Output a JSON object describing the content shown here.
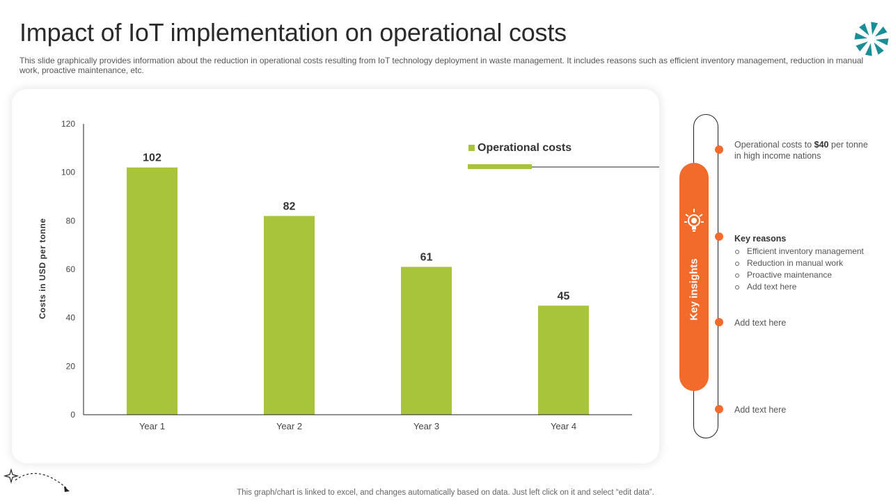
{
  "page": {
    "title": "Impact of IoT implementation on operational costs",
    "subtitle": "This slide graphically provides information about the reduction in operational costs resulting from IoT technology deployment in waste management. It includes reasons such as efficient inventory management, reduction in manual work, proactive maintenance, etc.",
    "footer": "This graph/chart is linked to excel, and changes automatically based on data. Just left click on it and select “edit data”."
  },
  "colors": {
    "bar": "#a8c43a",
    "accent": "#f26b2b",
    "logo": "#1a8e96"
  },
  "chart_data": {
    "type": "bar",
    "categories": [
      "Year 1",
      "Year 2",
      "Year 3",
      "Year 4"
    ],
    "series": [
      {
        "name": "Operational costs",
        "values": [
          102,
          82,
          61,
          45
        ]
      }
    ],
    "title": "",
    "xlabel": "",
    "ylabel": "Costs in USD per tonne",
    "ylim": [
      0,
      120
    ],
    "yticks": [
      0,
      20,
      40,
      60,
      80,
      100,
      120
    ],
    "legend_position": "top-right",
    "data_labels": true,
    "grid": false
  },
  "insights": {
    "pill_label": "Key insights",
    "pill_icon": "lightbulb-gear-icon",
    "item1": {
      "text_before": "Operational costs to ",
      "highlight": "$40",
      "text_after": " per tonne in high income nations"
    },
    "reasons": {
      "title": "Key reasons",
      "items": [
        "Efficient inventory management",
        "Reduction in manual work",
        "Proactive maintenance",
        "Add text here"
      ]
    },
    "item3": "Add text here",
    "item4": "Add text here"
  }
}
